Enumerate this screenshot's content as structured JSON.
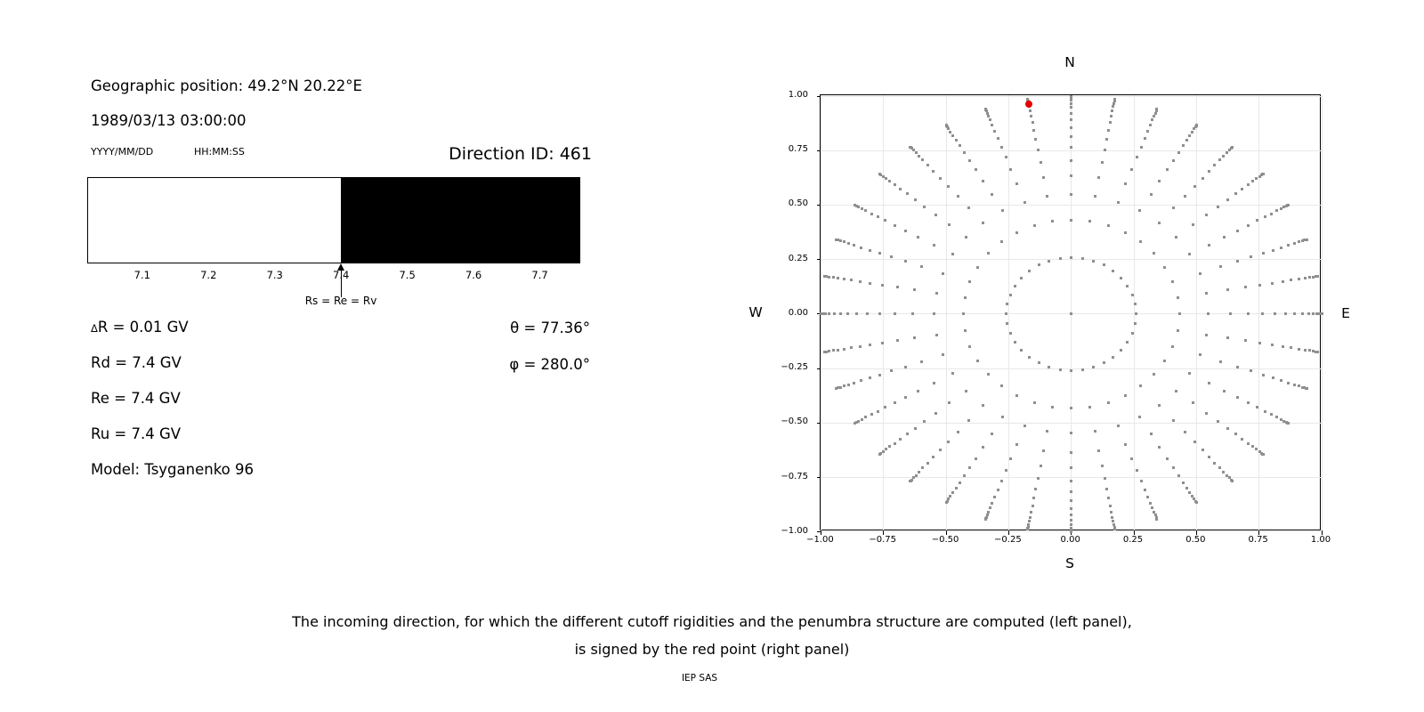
{
  "header": {
    "geographic_position": "Geographic position: 49.2°N 20.22°E",
    "datetime": "1989/03/13 03:00:00",
    "date_format_label": "YYYY/MM/DD",
    "time_format_label": "HH:MM:SS",
    "direction_id": "Direction ID: 461"
  },
  "penumbra": {
    "range_gv": [
      7.017,
      7.761
    ],
    "boundary_gv": 7.4,
    "allowed_color": "#ffffff",
    "forbidden_color": "#000000",
    "ticks": [
      {
        "value": 7.1,
        "label": "7.1"
      },
      {
        "value": 7.2,
        "label": "7.2"
      },
      {
        "value": 7.3,
        "label": "7.3"
      },
      {
        "value": 7.4,
        "label": "7.4"
      },
      {
        "value": 7.5,
        "label": "7.5"
      },
      {
        "value": 7.6,
        "label": "7.6"
      },
      {
        "value": 7.7,
        "label": "7.7"
      }
    ],
    "arrow_label": "Rs = Re = Rv"
  },
  "cutoff_info": {
    "delta_symbol": "Δ",
    "delta_rest": "R = 0.01 GV",
    "rd_line": "Rd = 7.4 GV",
    "re_line": "Re = 7.4 GV",
    "ru_line": "Ru = 7.4 GV",
    "model_line": "Model: Tsyganenko 96",
    "theta_line": "θ = 77.36°",
    "phi_line": "φ = 280.0°"
  },
  "chart_data": {
    "type": "scatter",
    "title": "",
    "compass": {
      "top": "N",
      "bottom": "S",
      "left": "W",
      "right": "E"
    },
    "xlim": [
      -1,
      1
    ],
    "ylim": [
      -1,
      1
    ],
    "grid": true,
    "ticks": {
      "values": [
        -1,
        -0.75,
        -0.5,
        -0.25,
        0,
        0.25,
        0.5,
        0.75,
        1
      ],
      "labels": [
        "−1.00",
        "−0.75",
        "−0.50",
        "−0.25",
        "0.00",
        "0.25",
        "0.50",
        "0.75",
        "1.00"
      ]
    },
    "rays": {
      "azimuth_start_deg": 0,
      "azimuth_end_deg": 350,
      "azimuth_step_deg": 10,
      "radii": [
        1.0,
        0.998,
        0.992,
        0.981,
        0.966,
        0.947,
        0.922,
        0.892,
        0.857,
        0.815,
        0.765,
        0.706,
        0.635,
        0.547,
        0.432,
        0.259
      ]
    },
    "center_dot": true,
    "dot_color": "#8f8f8f",
    "selected_point": {
      "x": -0.17,
      "y": 0.962,
      "color": "#e60000"
    }
  },
  "caption": {
    "line1": "The incoming direction, for which the different cutoff rigidities and the penumbra structure are computed (left panel),",
    "line2": "is signed by the red point (right panel)",
    "credit": "IEP SAS"
  }
}
